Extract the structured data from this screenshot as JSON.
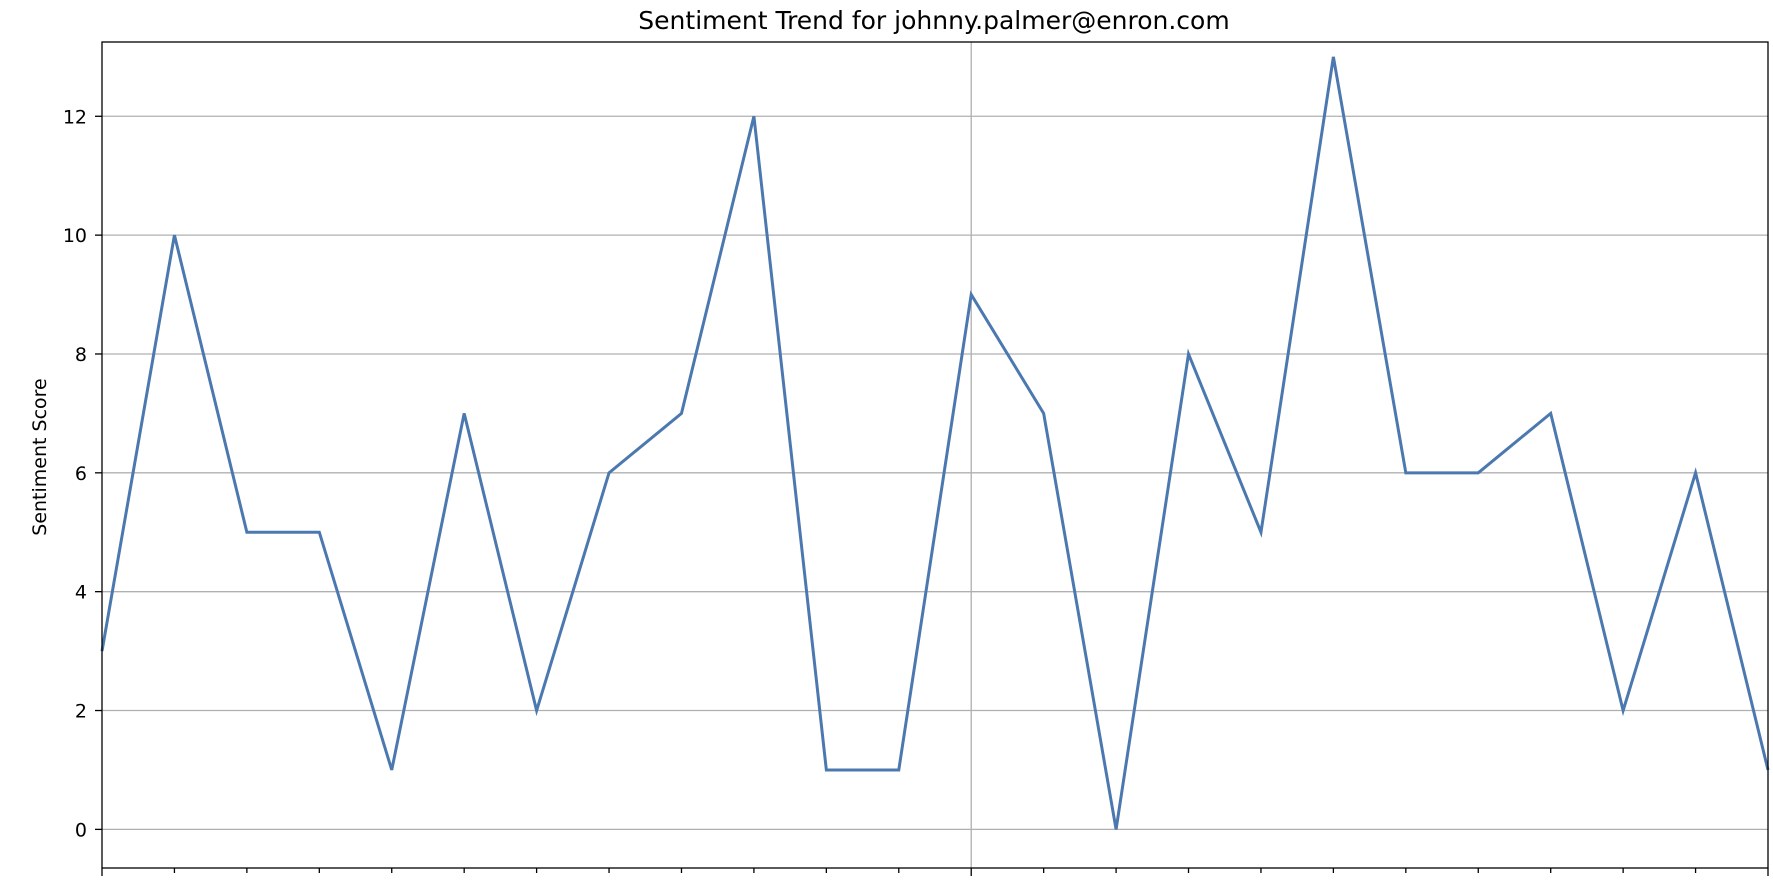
{
  "chart_data": {
    "type": "line",
    "title": "Sentiment Trend for johnny.palmer@enron.com",
    "xlabel": "",
    "ylabel": "Sentiment Score",
    "ylim": [
      -0.65,
      13.25
    ],
    "yticks": [
      0,
      2,
      4,
      6,
      8,
      10,
      12
    ],
    "grid": "y-major and one x-major",
    "x_major_index": 12,
    "series": [
      {
        "color": "#4c78b0",
        "values": [
          3,
          10,
          5,
          5,
          1,
          7,
          2,
          6,
          7,
          12,
          1,
          1,
          9,
          7,
          0,
          8,
          5,
          13,
          6,
          6,
          7,
          2,
          6,
          1
        ]
      }
    ]
  }
}
